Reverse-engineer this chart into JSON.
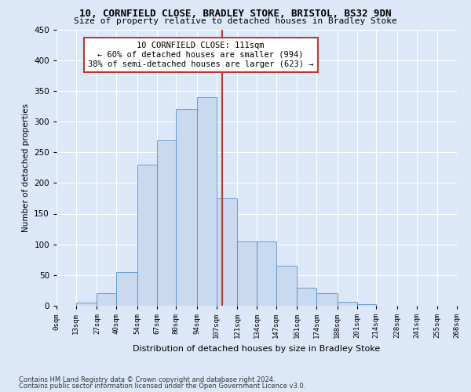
{
  "title": "10, CORNFIELD CLOSE, BRADLEY STOKE, BRISTOL, BS32 9DN",
  "subtitle": "Size of property relative to detached houses in Bradley Stoke",
  "xlabel": "Distribution of detached houses by size in Bradley Stoke",
  "ylabel": "Number of detached properties",
  "footnote1": "Contains HM Land Registry data © Crown copyright and database right 2024.",
  "footnote2": "Contains public sector information licensed under the Open Government Licence v3.0.",
  "bin_labels": [
    "0sqm",
    "13sqm",
    "27sqm",
    "40sqm",
    "54sqm",
    "67sqm",
    "80sqm",
    "94sqm",
    "107sqm",
    "121sqm",
    "134sqm",
    "147sqm",
    "161sqm",
    "174sqm",
    "188sqm",
    "201sqm",
    "214sqm",
    "228sqm",
    "241sqm",
    "255sqm",
    "268sqm"
  ],
  "bin_edges": [
    0,
    13,
    27,
    40,
    54,
    67,
    80,
    94,
    107,
    121,
    134,
    147,
    161,
    174,
    188,
    201,
    214,
    228,
    241,
    255,
    268
  ],
  "bar_heights": [
    0,
    5,
    20,
    55,
    230,
    270,
    320,
    340,
    175,
    105,
    105,
    65,
    30,
    20,
    7,
    2,
    0,
    0,
    0,
    0
  ],
  "bar_color": "#c9d9f0",
  "bar_edge_color": "#5a8fc2",
  "property_value": 111,
  "vline_color": "#c0392b",
  "annotation_box_color": "#c0392b",
  "annotation_line1": "10 CORNFIELD CLOSE: 111sqm",
  "annotation_line2": "← 60% of detached houses are smaller (994)",
  "annotation_line3": "38% of semi-detached houses are larger (623) →",
  "bg_color": "#dce8f7",
  "grid_color": "#ffffff",
  "ylim": [
    0,
    450
  ],
  "yticks": [
    0,
    50,
    100,
    150,
    200,
    250,
    300,
    350,
    400,
    450
  ]
}
